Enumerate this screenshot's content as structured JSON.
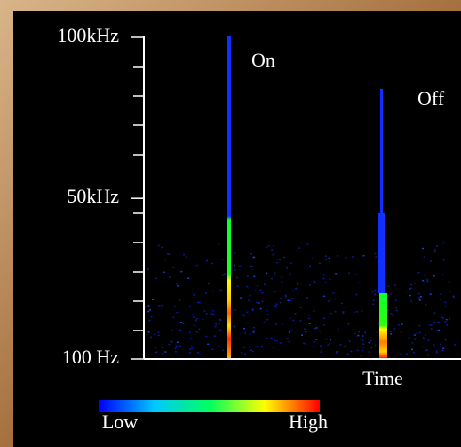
{
  "chart_data": {
    "type": "spectrogram",
    "annotations": [
      "On",
      "Off"
    ],
    "xlabel": "Time",
    "ylim": [
      100,
      100000
    ],
    "yticks": [
      {
        "value": 100,
        "label": "100 Hz"
      },
      {
        "value": 50000,
        "label": "50kHz"
      },
      {
        "value": 100000,
        "label": "100kHz"
      }
    ],
    "colorbar": {
      "low": "Low",
      "high": "High",
      "colors": [
        "#0000ff",
        "#00c8ff",
        "#00ff60",
        "#ffff00",
        "#ff0000"
      ]
    }
  }
}
